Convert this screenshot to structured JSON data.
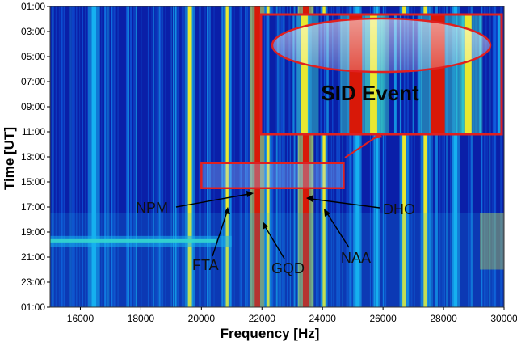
{
  "chart_data": {
    "type": "heatmap",
    "xlabel": "Frequency [Hz]",
    "ylabel": "Time [UT]",
    "xlim": [
      15000,
      30000
    ],
    "ylim_hours": [
      1,
      25
    ],
    "x_ticks": [
      "16000",
      "18000",
      "20000",
      "22000",
      "24000",
      "26000",
      "28000",
      "30000"
    ],
    "y_ticks": [
      "01:00",
      "03:00",
      "05:00",
      "07:00",
      "09:00",
      "11:00",
      "13:00",
      "15:00",
      "17:00",
      "19:00",
      "21:00",
      "23:00",
      "01:00"
    ],
    "colormap": [
      "#0a1fa8",
      "#1060e0",
      "#16b0f0",
      "#3ce0c8",
      "#e8e830",
      "#f08a20",
      "#d81808"
    ],
    "transmitters": [
      {
        "name": "NPM",
        "freq": 21400
      },
      {
        "name": "FTA",
        "freq": 20900
      },
      {
        "name": "GQD",
        "freq": 22100
      },
      {
        "name": "DHO",
        "freq": 23400
      },
      {
        "name": "NAA",
        "freq": 24000
      }
    ],
    "strong_lines": [
      {
        "freq": 21850,
        "width": 180,
        "level": "red"
      },
      {
        "freq": 23450,
        "width": 200,
        "level": "red"
      },
      {
        "freq": 26700,
        "width": 120,
        "level": "yellow"
      },
      {
        "freq": 19620,
        "width": 130,
        "level": "yellow"
      },
      {
        "freq": 16450,
        "width": 150,
        "level": "cyan"
      },
      {
        "freq": 20850,
        "width": 90,
        "level": "yellow"
      },
      {
        "freq": 22200,
        "width": 100,
        "level": "yellow"
      },
      {
        "freq": 24050,
        "width": 90,
        "level": "yellow"
      },
      {
        "freq": 25150,
        "width": 110,
        "level": "cyan"
      },
      {
        "freq": 25800,
        "width": 90,
        "level": "cyan"
      },
      {
        "freq": 28400,
        "width": 110,
        "level": "cyan"
      },
      {
        "freq": 27400,
        "width": 120,
        "level": "yellow"
      }
    ],
    "sid_event": {
      "label": "SID Event",
      "time_range": [
        "13:30",
        "15:30"
      ],
      "freq_range": [
        20000,
        24700
      ]
    },
    "broadband_band_hour": 19.7
  }
}
